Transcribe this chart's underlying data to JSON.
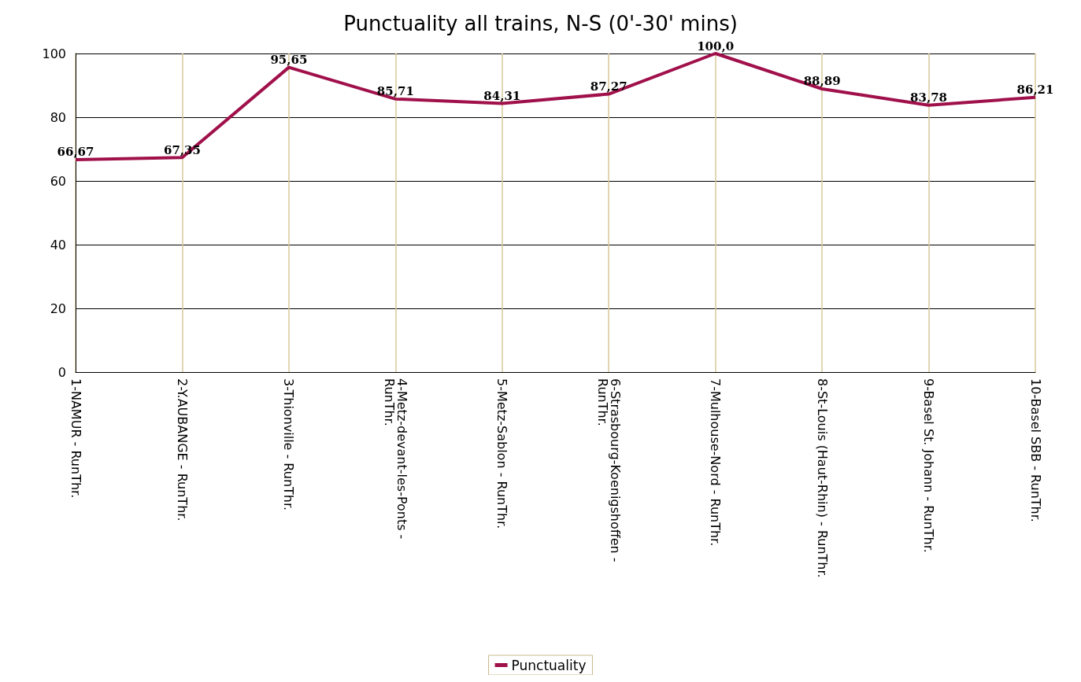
{
  "chart_data": {
    "type": "line",
    "title": "Punctuality all trains, N-S (0'-30' mins)",
    "categories": [
      "1-NAMUR - RunThr.",
      "2-Y.AUBANGE - RunThr.",
      "3-Thionville - RunThr.",
      "4-Metz-devant-les-Ponts - RunThr.",
      "5-Metz-Sablon - RunThr.",
      "6-Strasbourg-Koenigshoffen - RunThr.",
      "7-Mulhouse-Nord - RunThr.",
      "8-St-Louis (Haut-Rhin) - RunThr.",
      "9-Basel St. Johann - RunThr.",
      "10-Basel SBB - RunThr."
    ],
    "series": [
      {
        "name": "Punctuality",
        "color": "#a0104a",
        "values": [
          66.67,
          67.35,
          95.65,
          85.71,
          84.31,
          87.27,
          100.0,
          88.89,
          83.78,
          86.21
        ],
        "value_labels": [
          "66,67",
          "67,35",
          "95,65",
          "85,71",
          "84,31",
          "87,27",
          "100,0",
          "88,89",
          "83,78",
          "86,21"
        ]
      }
    ],
    "ylim": [
      0,
      100
    ],
    "yticks": [
      0,
      20,
      40,
      60,
      80,
      100
    ],
    "grid": true,
    "legend": "bottom",
    "marker": "none",
    "line_style": "solid"
  }
}
